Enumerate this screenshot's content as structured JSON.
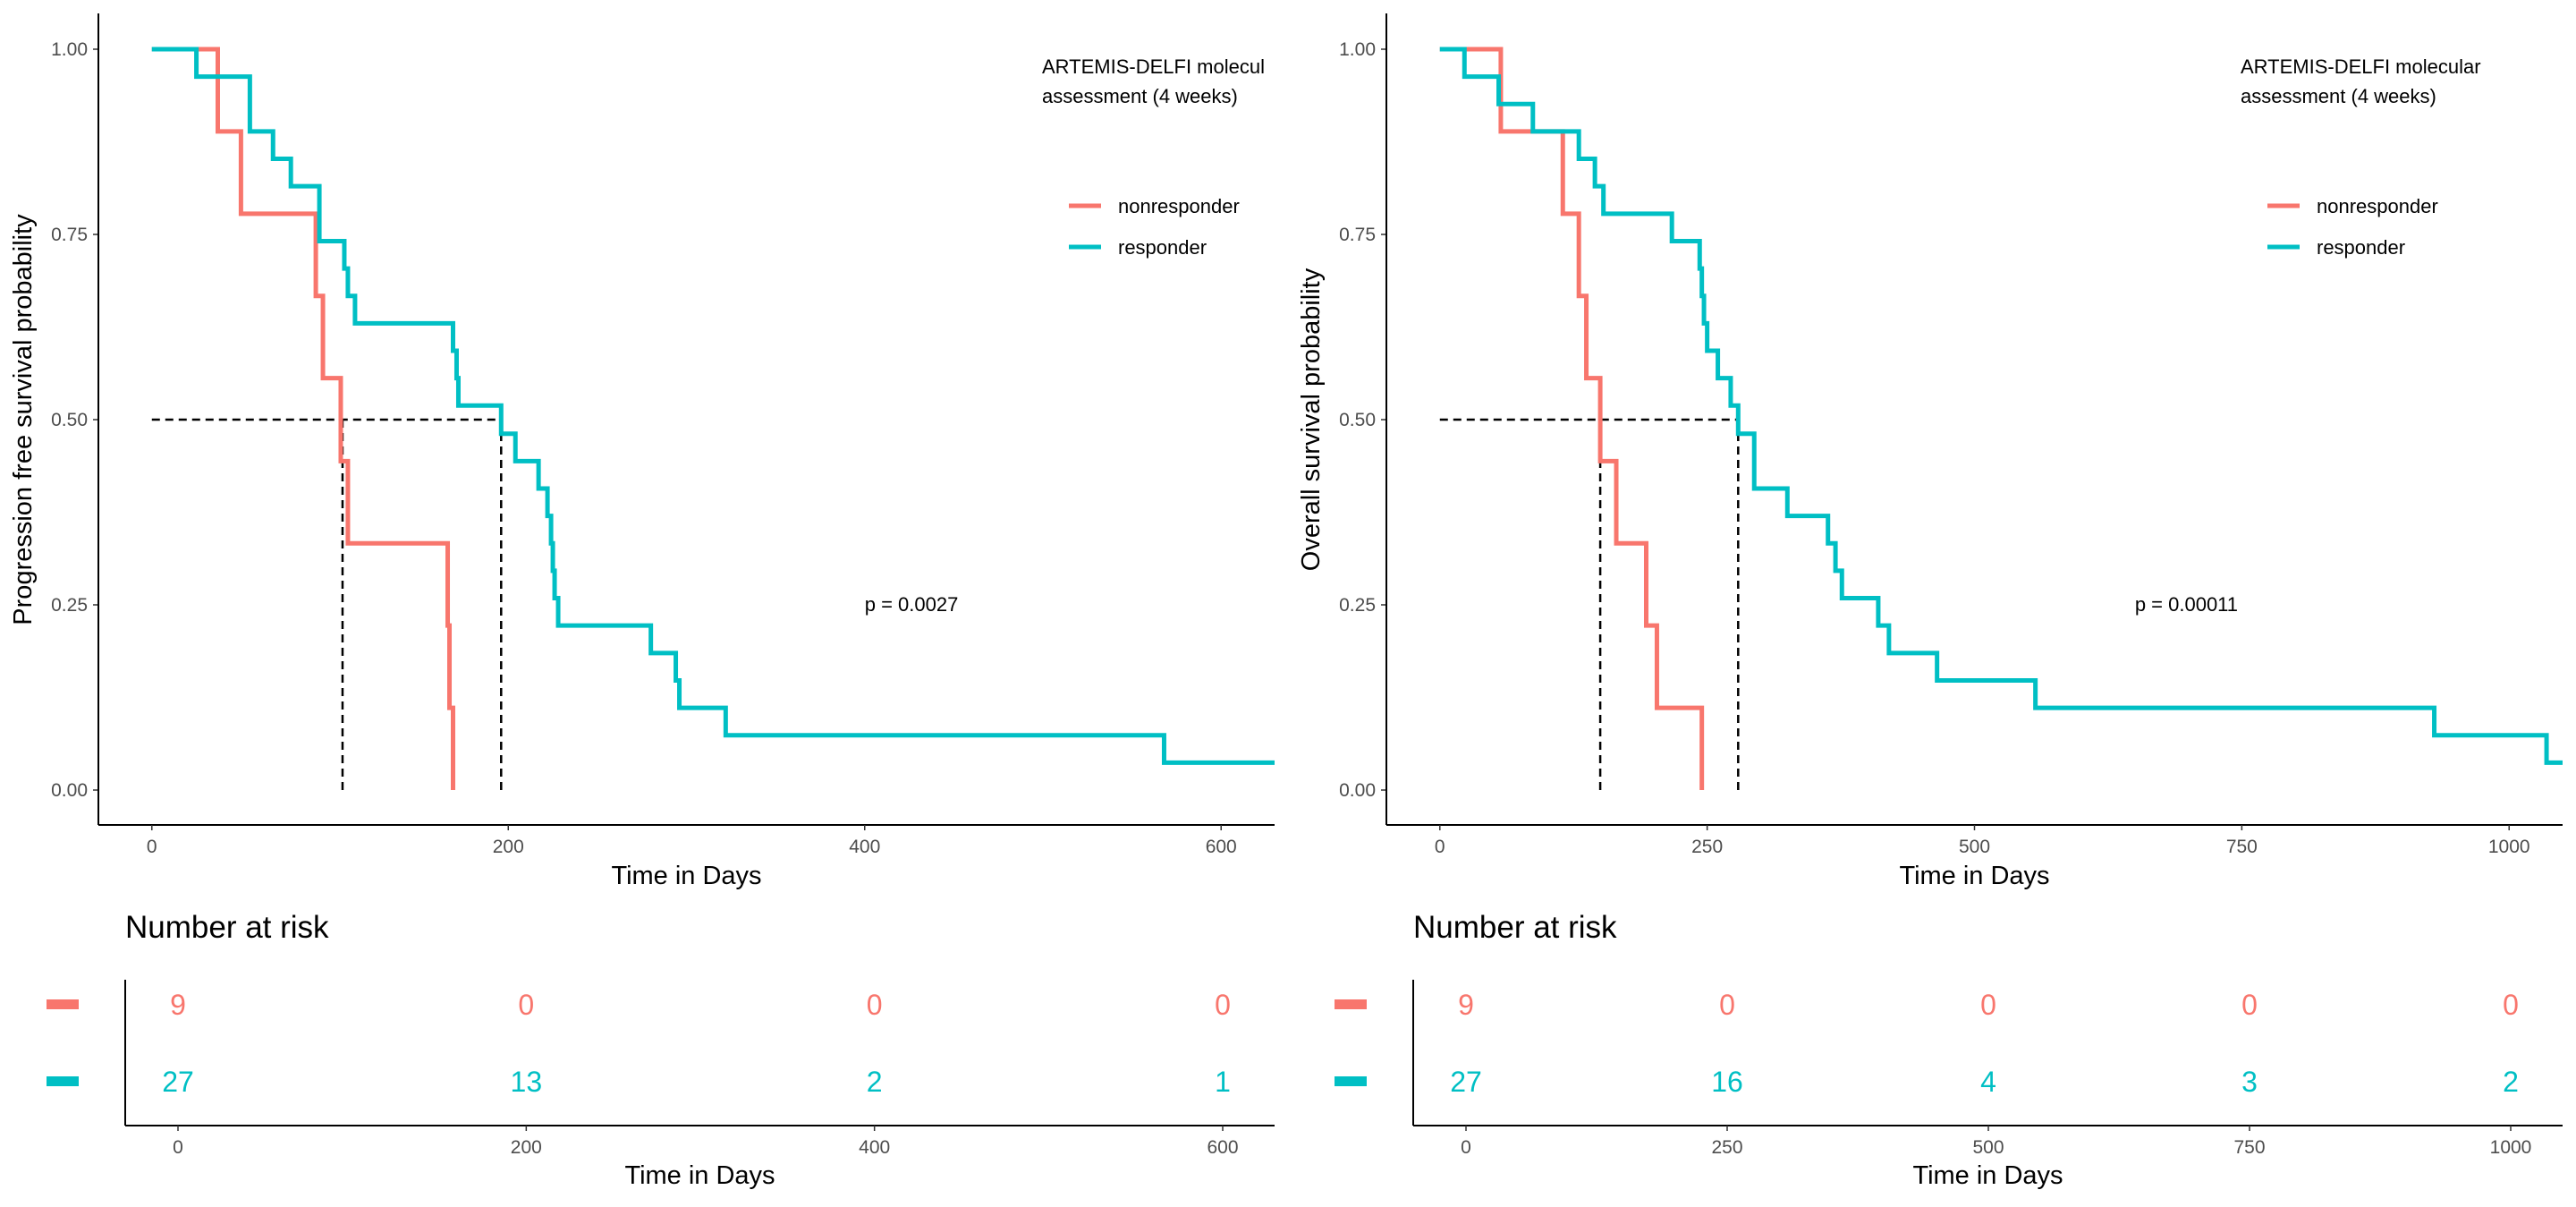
{
  "chart_data": [
    {
      "type": "line",
      "subtype": "kaplan-meier",
      "ylabel": "Progression free survival probability",
      "xlabel": "Time in Days",
      "xlim": [
        -30,
        630
      ],
      "ylim": [
        0,
        1
      ],
      "xticks": [
        0,
        200,
        400,
        600
      ],
      "xtick_labels": [
        "0",
        "200",
        "400",
        "600"
      ],
      "yticks": [
        0,
        0.25,
        0.5,
        0.75,
        1
      ],
      "ytick_labels": [
        "0.00",
        "0.25",
        "0.50",
        "0.75",
        "1.00"
      ],
      "legend_title": [
        "ARTEMIS-DELFI molecul",
        "assessment (4 weeks)"
      ],
      "legend_position": "top-right",
      "annotation": "p = 0.0027",
      "annotation_pos": [
        400,
        0.25
      ],
      "median_lines": [
        107,
        196
      ],
      "series": [
        {
          "name": "nonresponder",
          "color": "#F8766D",
          "steps": [
            [
              0,
              1.0
            ],
            [
              37,
              0.889
            ],
            [
              50,
              0.778
            ],
            [
              92,
              0.667
            ],
            [
              96,
              0.556
            ],
            [
              106,
              0.444
            ],
            [
              110,
              0.333
            ],
            [
              166,
              0.222
            ],
            [
              167,
              0.111
            ],
            [
              169,
              0.0
            ]
          ],
          "end": 169
        },
        {
          "name": "responder",
          "color": "#00BFC4",
          "steps": [
            [
              0,
              1.0
            ],
            [
              25,
              0.963
            ],
            [
              55,
              0.889
            ],
            [
              68,
              0.852
            ],
            [
              78,
              0.815
            ],
            [
              94,
              0.741
            ],
            [
              108,
              0.704
            ],
            [
              110,
              0.667
            ],
            [
              114,
              0.63
            ],
            [
              169,
              0.593
            ],
            [
              171,
              0.556
            ],
            [
              172,
              0.519
            ],
            [
              196,
              0.481
            ],
            [
              204,
              0.444
            ],
            [
              217,
              0.407
            ],
            [
              222,
              0.37
            ],
            [
              224,
              0.333
            ],
            [
              225,
              0.296
            ],
            [
              226,
              0.259
            ],
            [
              228,
              0.222
            ],
            [
              280,
              0.185
            ],
            [
              294,
              0.148
            ],
            [
              296,
              0.111
            ],
            [
              322,
              0.074
            ],
            [
              568,
              0.037
            ]
          ],
          "end": 630
        }
      ],
      "risk_table": {
        "title": "Number at risk",
        "xlabel": "Time in Days",
        "xticks": [
          0,
          200,
          400,
          600
        ],
        "xtick_labels": [
          "0",
          "200",
          "400",
          "600"
        ],
        "rows": [
          {
            "series": "nonresponder",
            "color": "#F8766D",
            "values": [
              "9",
              "0",
              "0",
              "0"
            ]
          },
          {
            "series": "responder",
            "color": "#00BFC4",
            "values": [
              "27",
              "13",
              "2",
              "1"
            ]
          }
        ]
      }
    },
    {
      "type": "line",
      "subtype": "kaplan-meier",
      "ylabel": "Overall survival probability",
      "xlabel": "Time in Days",
      "xlim": [
        -50,
        1050
      ],
      "ylim": [
        0,
        1
      ],
      "xticks": [
        0,
        250,
        500,
        750,
        1000
      ],
      "xtick_labels": [
        "0",
        "250",
        "500",
        "750",
        "1000"
      ],
      "yticks": [
        0,
        0.25,
        0.5,
        0.75,
        1
      ],
      "ytick_labels": [
        "0.00",
        "0.25",
        "0.50",
        "0.75",
        "1.00"
      ],
      "legend_title": [
        "ARTEMIS-DELFI molecular",
        "assessment (4 weeks)"
      ],
      "legend_position": "top-right",
      "annotation": "p = 0.00011",
      "annotation_pos": [
        650,
        0.25
      ],
      "median_lines": [
        150,
        279
      ],
      "series": [
        {
          "name": "nonresponder",
          "color": "#F8766D",
          "steps": [
            [
              0,
              1.0
            ],
            [
              57,
              0.889
            ],
            [
              115,
              0.778
            ],
            [
              130,
              0.667
            ],
            [
              137,
              0.556
            ],
            [
              150,
              0.444
            ],
            [
              165,
              0.333
            ],
            [
              193,
              0.222
            ],
            [
              203,
              0.111
            ],
            [
              245,
              0.0
            ]
          ],
          "end": 245
        },
        {
          "name": "responder",
          "color": "#00BFC4",
          "steps": [
            [
              0,
              1.0
            ],
            [
              23,
              0.963
            ],
            [
              55,
              0.926
            ],
            [
              87,
              0.889
            ],
            [
              130,
              0.852
            ],
            [
              145,
              0.815
            ],
            [
              153,
              0.778
            ],
            [
              217,
              0.741
            ],
            [
              243,
              0.704
            ],
            [
              245,
              0.667
            ],
            [
              247,
              0.63
            ],
            [
              250,
              0.593
            ],
            [
              260,
              0.556
            ],
            [
              272,
              0.519
            ],
            [
              279,
              0.481
            ],
            [
              294,
              0.407
            ],
            [
              325,
              0.37
            ],
            [
              363,
              0.333
            ],
            [
              370,
              0.296
            ],
            [
              376,
              0.259
            ],
            [
              410,
              0.222
            ],
            [
              420,
              0.185
            ],
            [
              465,
              0.148
            ],
            [
              557,
              0.111
            ],
            [
              930,
              0.074
            ],
            [
              1035,
              0.037
            ]
          ],
          "end": 1050
        }
      ],
      "risk_table": {
        "title": "Number at risk",
        "xlabel": "Time in Days",
        "xticks": [
          0,
          250,
          500,
          750,
          1000
        ],
        "xtick_labels": [
          "0",
          "250",
          "500",
          "750",
          "1000"
        ],
        "rows": [
          {
            "series": "nonresponder",
            "color": "#F8766D",
            "values": [
              "9",
              "0",
              "0",
              "0",
              "0"
            ]
          },
          {
            "series": "responder",
            "color": "#00BFC4",
            "values": [
              "27",
              "16",
              "4",
              "3",
              "2"
            ]
          }
        ]
      }
    }
  ]
}
